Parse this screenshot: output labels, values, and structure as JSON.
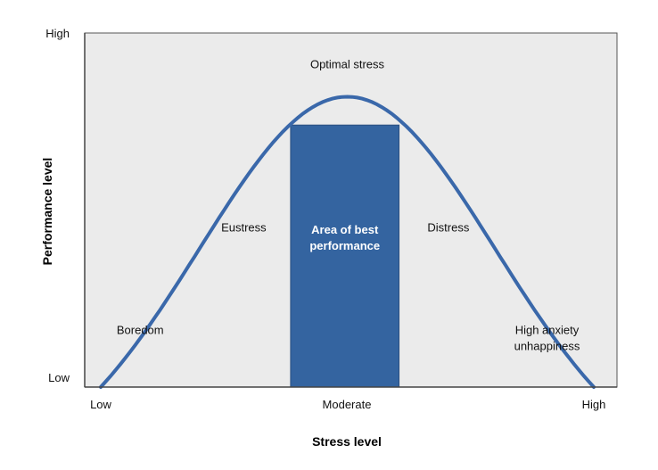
{
  "chart_data": {
    "type": "line",
    "title": "",
    "xlabel": "Stress level",
    "ylabel": "Performance level",
    "x_ticks": [
      "Low",
      "Moderate",
      "High"
    ],
    "y_ticks": [
      "Low",
      "High"
    ],
    "xlim": [
      0,
      1
    ],
    "ylim": [
      0,
      1
    ],
    "grid": false,
    "legend": "none",
    "curve": {
      "shape": "inverted-U",
      "peak_x": 0.5,
      "peak_y": 0.82,
      "end_y": 0.0
    },
    "highlight_region": {
      "label_line1": "Area of best",
      "label_line2": "performance",
      "x_start": 0.385,
      "x_end": 0.605,
      "top_y": 0.74
    },
    "annotations": [
      {
        "text": "Optimal stress",
        "x": 0.5,
        "y": 0.9
      },
      {
        "text": "Eustress",
        "x": 0.29,
        "y": 0.44
      },
      {
        "text": "Distress",
        "x": 0.705,
        "y": 0.44
      },
      {
        "text": "Boredom",
        "x": 0.08,
        "y": 0.15
      },
      {
        "text": "High anxiety",
        "x": 0.905,
        "y": 0.15
      },
      {
        "text": "unhappiness",
        "x": 0.905,
        "y": 0.105
      }
    ],
    "colors": {
      "plot_background": "#ebebeb",
      "curve": "#3a68aa",
      "region": "#3464a0",
      "axis": "#444444"
    }
  }
}
